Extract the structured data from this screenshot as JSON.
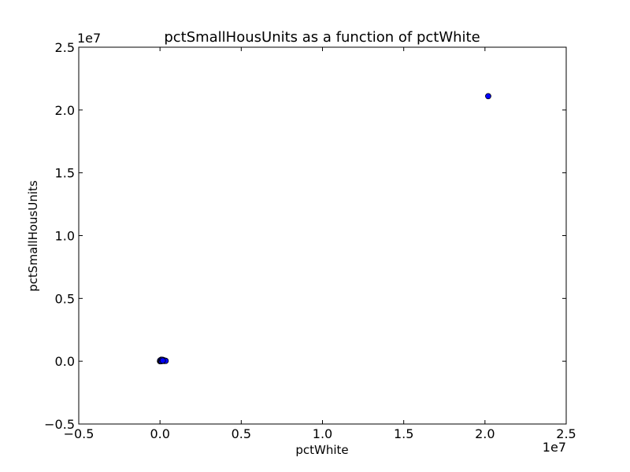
{
  "chart_data": {
    "type": "scatter",
    "title": "pctSmallHousUnits as a function of pctWhite",
    "xlabel": "pctWhite",
    "ylabel": "pctSmallHousUnits",
    "x_offset_label": "1e7",
    "y_offset_label": "1e7",
    "xlim": [
      -5000000,
      25000000
    ],
    "ylim": [
      -5000000,
      25000000
    ],
    "x_ticks": [
      {
        "value": -5000000,
        "label": "−0.5"
      },
      {
        "value": 0,
        "label": "0.0"
      },
      {
        "value": 5000000,
        "label": "0.5"
      },
      {
        "value": 10000000,
        "label": "1.0"
      },
      {
        "value": 15000000,
        "label": "1.5"
      },
      {
        "value": 20000000,
        "label": "2.0"
      },
      {
        "value": 25000000,
        "label": "2.5"
      }
    ],
    "y_ticks": [
      {
        "value": -5000000,
        "label": "−0.5"
      },
      {
        "value": 0,
        "label": "0.0"
      },
      {
        "value": 5000000,
        "label": "0.5"
      },
      {
        "value": 10000000,
        "label": "1.0"
      },
      {
        "value": 15000000,
        "label": "1.5"
      },
      {
        "value": 20000000,
        "label": "2.0"
      },
      {
        "value": 25000000,
        "label": "2.5"
      }
    ],
    "grid": false,
    "marker_color": "#0000ff",
    "marker_edge_color": "#000000",
    "points": [
      {
        "x": 20200000,
        "y": 21100000
      },
      {
        "x": 0,
        "y": 0
      },
      {
        "x": 20000,
        "y": 15000
      },
      {
        "x": 40000,
        "y": 40000
      },
      {
        "x": 60000,
        "y": 80000
      },
      {
        "x": 80000,
        "y": 120000
      },
      {
        "x": 100000,
        "y": 90000
      },
      {
        "x": 120000,
        "y": 30000
      },
      {
        "x": 150000,
        "y": 60000
      },
      {
        "x": 180000,
        "y": 100000
      },
      {
        "x": 200000,
        "y": 40000
      },
      {
        "x": 230000,
        "y": 70000
      },
      {
        "x": 260000,
        "y": 20000
      },
      {
        "x": 300000,
        "y": 40000
      },
      {
        "x": 350000,
        "y": 30000
      },
      {
        "x": 10000,
        "y": 60000
      },
      {
        "x": 50000,
        "y": 10000
      },
      {
        "x": 90000,
        "y": 5000
      },
      {
        "x": 130000,
        "y": 110000
      },
      {
        "x": 170000,
        "y": 50000
      }
    ]
  }
}
